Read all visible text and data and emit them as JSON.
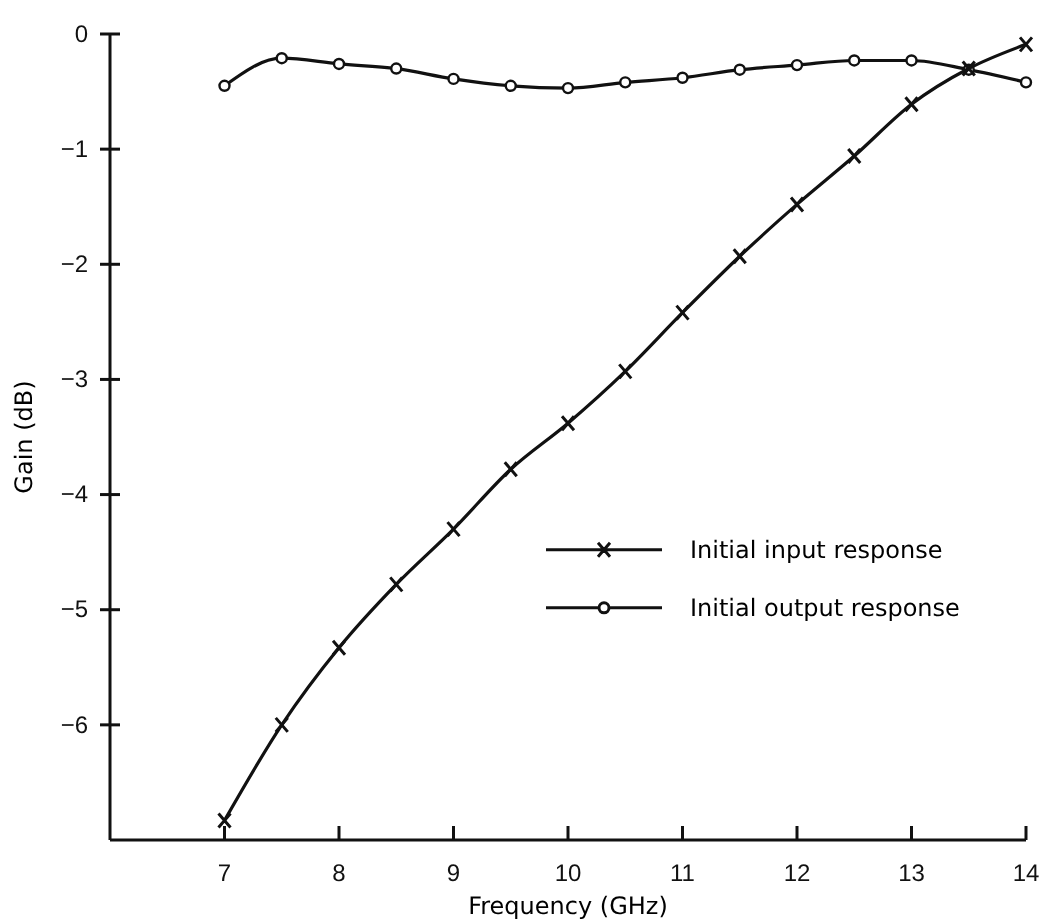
{
  "chart_data": {
    "type": "line",
    "xlabel": "Frequency (GHz)",
    "ylabel": "Gain (dB)",
    "xlim": [
      6,
      14
    ],
    "xticks": [
      7,
      8,
      9,
      10,
      11,
      12,
      13,
      14
    ],
    "ylim": [
      -7,
      0
    ],
    "yticks": [
      -6,
      -5,
      -4,
      -3,
      -2,
      -1,
      0
    ],
    "grid": false,
    "legend": "right",
    "series": [
      {
        "name": "Initial input response",
        "color": "#111111",
        "marker": "cross",
        "x": [
          7,
          7.5,
          8,
          8.5,
          9,
          9.5,
          10,
          10.5,
          11,
          11.5,
          12,
          12.5,
          13,
          13.5,
          14
        ],
        "values": [
          -6.83,
          -6.0,
          -5.33,
          -4.78,
          -4.3,
          -3.78,
          -3.38,
          -2.93,
          -2.42,
          -1.93,
          -1.48,
          -1.06,
          -0.61,
          -0.3,
          -0.09
        ]
      },
      {
        "name": "Initial output response",
        "color": "#111111",
        "marker": "circle",
        "x": [
          7,
          7.5,
          8,
          8.5,
          9,
          9.5,
          10,
          10.5,
          11,
          11.5,
          12,
          12.5,
          13,
          13.5,
          14
        ],
        "values": [
          -0.45,
          -0.21,
          -0.26,
          -0.3,
          -0.39,
          -0.45,
          -0.47,
          -0.42,
          -0.38,
          -0.31,
          -0.27,
          -0.23,
          -0.23,
          -0.31,
          -0.42
        ]
      }
    ]
  }
}
